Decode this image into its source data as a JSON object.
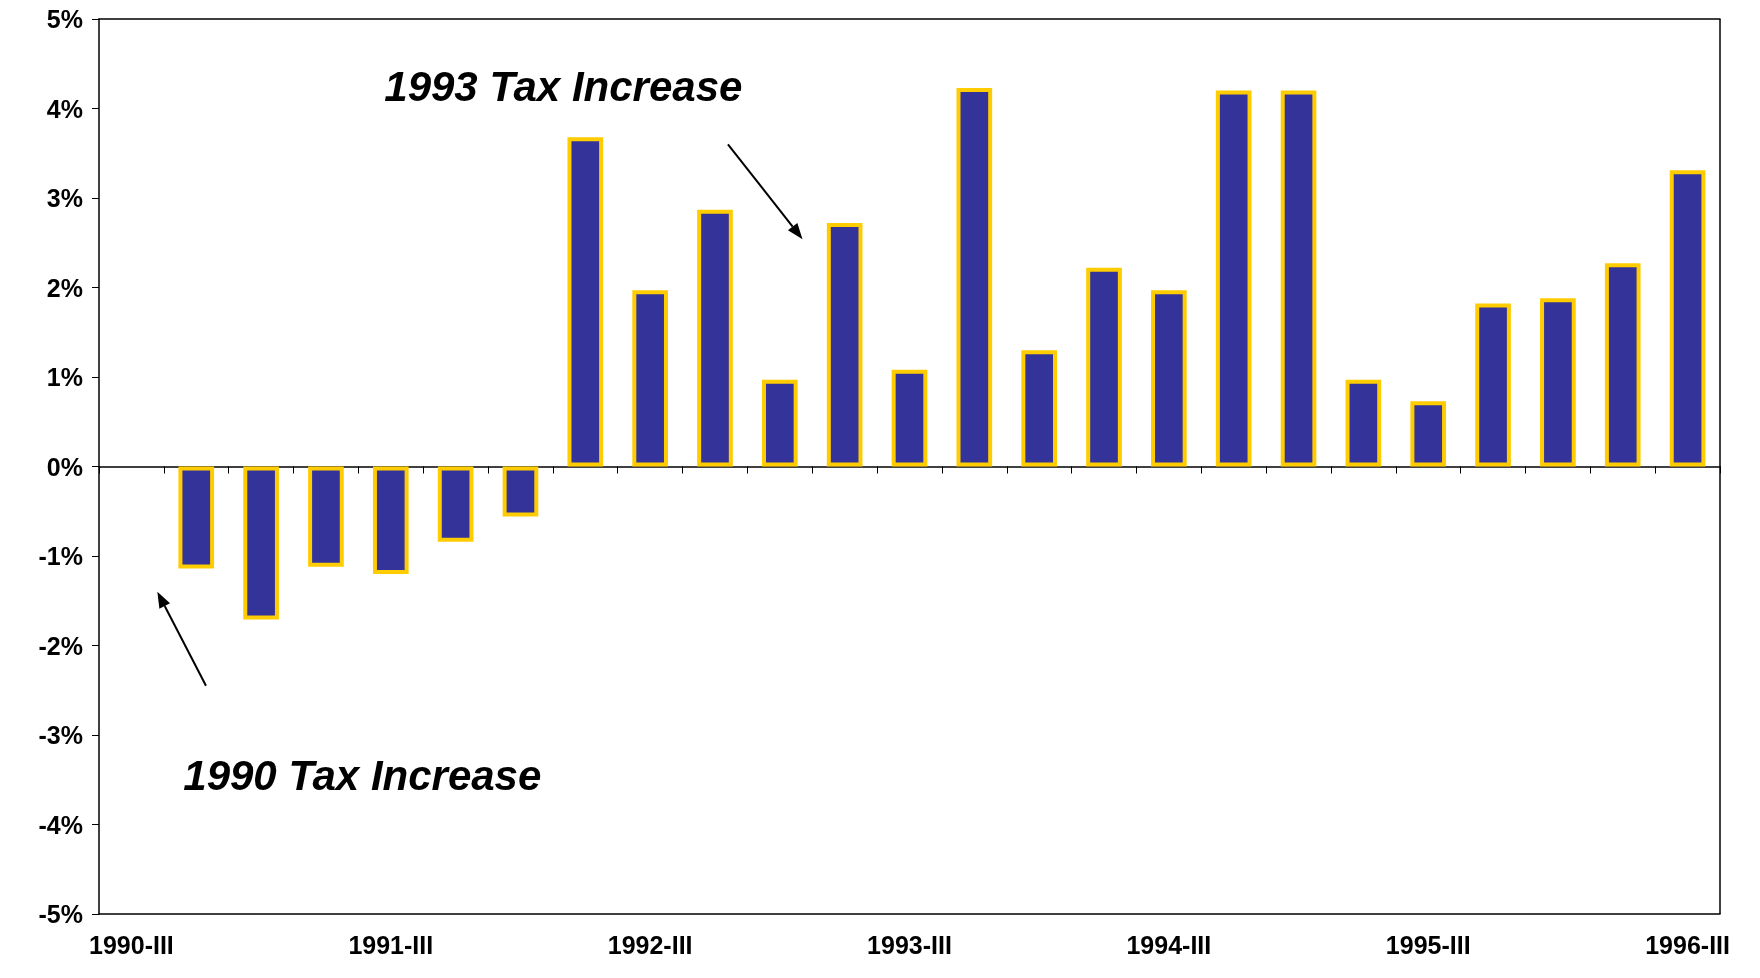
{
  "chart_data": {
    "type": "bar",
    "categories": [
      "1990-III",
      null,
      null,
      null,
      "1991-III",
      null,
      null,
      null,
      "1992-III",
      null,
      null,
      null,
      "1993-III",
      null,
      null,
      null,
      "1994-III",
      null,
      null,
      null,
      "1995-III",
      null,
      null,
      null,
      "1996-III"
    ],
    "series": [
      {
        "color": "#333399",
        "values": [
          null,
          -1.14,
          -1.71,
          -1.12,
          -1.2,
          -0.84,
          -0.56,
          3.68,
          1.97,
          2.87,
          0.97,
          2.72,
          1.08,
          4.23,
          1.3,
          2.22,
          1.97,
          4.2,
          4.2,
          0.97,
          0.73,
          1.82,
          1.88,
          2.27,
          3.31
        ]
      }
    ],
    "ylim": [
      -5,
      5
    ],
    "yticks": [
      {
        "value": -5,
        "label": "-5%"
      },
      {
        "value": -4,
        "label": "-4%"
      },
      {
        "value": -3,
        "label": "-3%"
      },
      {
        "value": -2,
        "label": "-2%"
      },
      {
        "value": -1,
        "label": "-1%"
      },
      {
        "value": 0,
        "label": "0%"
      },
      {
        "value": 1,
        "label": "1%"
      },
      {
        "value": 2,
        "label": "2%"
      },
      {
        "value": 3,
        "label": "3%"
      },
      {
        "value": 4,
        "label": "4%"
      },
      {
        "value": 5,
        "label": "5%"
      }
    ],
    "annotations": [
      "1993 Tax Increase",
      "1990 Tax Increase"
    ]
  }
}
